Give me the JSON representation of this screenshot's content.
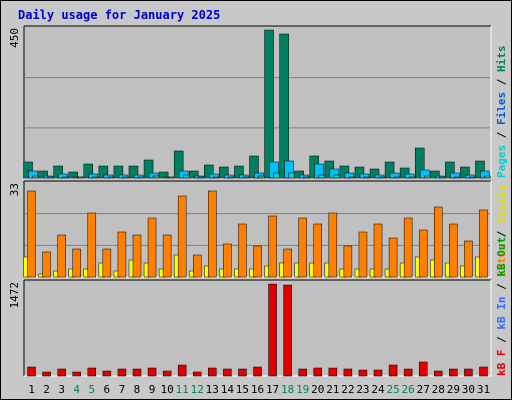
{
  "title": "Daily usage for January 2025",
  "colors": {
    "hits": "#008060",
    "files": "#00c0ff",
    "pages": "#00d0d0",
    "sites": "#ff8000",
    "visits": "#ffff00",
    "kbin": "#3070ff",
    "kbout": "#00a000",
    "kbf": "#e00000",
    "weekend": "#00805c"
  },
  "right_labels": {
    "panel1": [
      {
        "text": "Pages",
        "color": "#00d0d0"
      },
      {
        "text": " / ",
        "color": "#000000"
      },
      {
        "text": "Files",
        "color": "#0060d0"
      },
      {
        "text": " / ",
        "color": "#000000"
      },
      {
        "text": "Hits",
        "color": "#008060"
      }
    ],
    "panel2": [
      {
        "text": "Sites",
        "color": "#ff8000"
      },
      {
        "text": " / ",
        "color": "#000000"
      },
      {
        "text": "Visits",
        "color": "#e0e000"
      }
    ],
    "panel3": [
      {
        "text": "kB F",
        "color": "#e00000"
      },
      {
        "text": " / ",
        "color": "#000000"
      },
      {
        "text": "kB In",
        "color": "#3070ff"
      },
      {
        "text": " / ",
        "color": "#000000"
      },
      {
        "text": "kB Out",
        "color": "#00a000"
      }
    ]
  },
  "chart_data": {
    "type": "bar",
    "title": "Daily usage for January 2025",
    "categories": [
      "1",
      "2",
      "3",
      "4",
      "5",
      "6",
      "7",
      "8",
      "9",
      "10",
      "11",
      "12",
      "13",
      "14",
      "15",
      "16",
      "17",
      "18",
      "19",
      "20",
      "21",
      "22",
      "23",
      "24",
      "25",
      "26",
      "27",
      "28",
      "29",
      "30",
      "31"
    ],
    "weekend_days": [
      4,
      5,
      11,
      12,
      18,
      19,
      25,
      26
    ],
    "panels": [
      {
        "ymax_label": "450",
        "ylim": [
          0,
          450
        ],
        "series": [
          {
            "name": "Hits",
            "color": "#008060",
            "values": [
              48,
              20,
              36,
              18,
              42,
              38,
              36,
              38,
              56,
              18,
              82,
              22,
              40,
              32,
              36,
              66,
              450,
              438,
              22,
              66,
              52,
              38,
              32,
              28,
              50,
              30,
              90,
              22,
              48,
              32,
              52
            ]
          },
          {
            "name": "Files",
            "color": "#00c0ff",
            "values": [
              20,
              6,
              12,
              4,
              12,
              10,
              10,
              10,
              16,
              4,
              20,
              6,
              12,
              10,
              10,
              16,
              50,
              52,
              8,
              44,
              28,
              14,
              12,
              10,
              14,
              12,
              24,
              6,
              14,
              10,
              22
            ]
          },
          {
            "name": "Pages",
            "color": "#00d0d0",
            "values": [
              6,
              2,
              4,
              2,
              4,
              4,
              3,
              4,
              6,
              2,
              8,
              2,
              4,
              3,
              3,
              6,
              14,
              14,
              2,
              10,
              8,
              4,
              3,
              3,
              4,
              3,
              6,
              2,
              4,
              3,
              6
            ]
          }
        ]
      },
      {
        "ymax_label": "33",
        "ylim": [
          0,
          33
        ],
        "series": [
          {
            "name": "Sites",
            "color": "#ff8000",
            "values": [
              31,
              9,
              15,
              10,
              23,
              10,
              16,
              15,
              21,
              15,
              29,
              8,
              31,
              12,
              19,
              11,
              22,
              10,
              21,
              19,
              23,
              11,
              16,
              19,
              14,
              21,
              17,
              25,
              19,
              13,
              24
            ]
          },
          {
            "name": "Visits",
            "color": "#ffff00",
            "values": [
              7,
              1,
              2,
              3,
              3,
              5,
              2,
              6,
              5,
              3,
              8,
              2,
              4,
              3,
              3,
              3,
              4,
              5,
              5,
              5,
              5,
              3,
              3,
              3,
              3,
              5,
              7,
              6,
              5,
              4,
              7
            ]
          }
        ]
      },
      {
        "ymax_label": "1472",
        "ylim": [
          0,
          1472
        ],
        "series": [
          {
            "name": "kB F",
            "color": "#e00000",
            "values": [
              136,
              70,
              110,
              70,
              130,
              85,
              110,
              110,
              130,
              82,
              175,
              65,
              120,
              115,
              115,
              140,
              1472,
              1455,
              115,
              135,
              135,
              115,
              100,
              100,
              175,
              105,
              230,
              85,
              110,
              110,
              150
            ]
          }
        ]
      }
    ]
  }
}
